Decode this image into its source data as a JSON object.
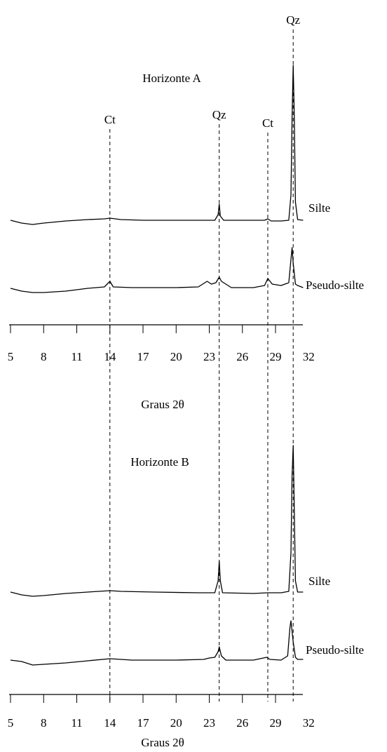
{
  "chart_data": [
    {
      "type": "line",
      "title": "Horizonte A",
      "x_label": "Graus 2θ",
      "xlim": [
        5,
        32
      ],
      "xticks": [
        5,
        8,
        11,
        14,
        17,
        20,
        23,
        26,
        29,
        32
      ],
      "reference_lines": [
        {
          "x": 14,
          "label": "Ct"
        },
        {
          "x": 23.9,
          "label": "Qz"
        },
        {
          "x": 28.3,
          "label": "Ct"
        },
        {
          "x": 30.6,
          "label": "Qz"
        }
      ],
      "series": [
        {
          "name": "Silte",
          "color": "#000000",
          "x": [
            5,
            6,
            7,
            8,
            10,
            12,
            13.5,
            14,
            15,
            17,
            20,
            22,
            23.5,
            23.8,
            23.9,
            24.0,
            24.3,
            26,
            28,
            28.3,
            28.6,
            29.5,
            30.2,
            30.4,
            30.5,
            30.6,
            30.7,
            30.8,
            31,
            31.5
          ],
          "values": [
            4,
            0,
            -2,
            0,
            3,
            5,
            6,
            7,
            5,
            4,
            4,
            4,
            4,
            12,
            27,
            10,
            4,
            4,
            4,
            6,
            3,
            3,
            4,
            40,
            150,
            225,
            150,
            30,
            5,
            4
          ]
        },
        {
          "name": "Pseudo-silte",
          "color": "#000000",
          "x": [
            5,
            6,
            7,
            8,
            10,
            12,
            13.5,
            14,
            14.3,
            16,
            20,
            22,
            22.8,
            23.2,
            23.6,
            23.9,
            24.1,
            24.5,
            25,
            27,
            28,
            28.3,
            28.7,
            29.5,
            30.2,
            30.5,
            30.6,
            30.8,
            31,
            31.5
          ],
          "values": [
            4,
            0,
            -2,
            -2,
            0,
            4,
            6,
            14,
            6,
            5,
            5,
            6,
            14,
            10,
            12,
            20,
            14,
            10,
            5,
            5,
            8,
            18,
            10,
            8,
            12,
            62,
            40,
            10,
            8,
            5
          ]
        }
      ]
    },
    {
      "type": "line",
      "title": "Horizonte B",
      "x_label": "Graus 2θ",
      "xlim": [
        5,
        32
      ],
      "xticks": [
        5,
        8,
        11,
        14,
        17,
        20,
        23,
        26,
        29,
        32
      ],
      "series": [
        {
          "name": "Silte",
          "color": "#000000",
          "x": [
            5,
            6,
            7,
            8,
            10,
            12,
            14,
            15,
            18,
            22,
            23.5,
            23.8,
            23.9,
            24.0,
            24.2,
            27,
            28.3,
            29.5,
            30.2,
            30.4,
            30.5,
            30.6,
            30.7,
            30.8,
            31,
            31.5
          ],
          "values": [
            4,
            0,
            -2,
            -1,
            2,
            4,
            6,
            5,
            4,
            3,
            3,
            20,
            48,
            20,
            3,
            2,
            3,
            3,
            5,
            60,
            170,
            213,
            120,
            20,
            4,
            4
          ]
        },
        {
          "name": "Pseudo-silte",
          "color": "#000000",
          "x": [
            5,
            6,
            7,
            8,
            10,
            12,
            14,
            16,
            20,
            22.5,
            23,
            23.5,
            23.8,
            23.9,
            24.1,
            24.5,
            27,
            28.2,
            28.5,
            29.5,
            30.1,
            30.3,
            30.4,
            30.6,
            30.8,
            31,
            31.5
          ],
          "values": [
            4,
            2,
            -3,
            -2,
            0,
            3,
            6,
            4,
            4,
            5,
            7,
            8,
            16,
            23,
            10,
            4,
            4,
            8,
            5,
            4,
            10,
            50,
            60,
            30,
            8,
            5,
            5
          ]
        }
      ]
    }
  ]
}
